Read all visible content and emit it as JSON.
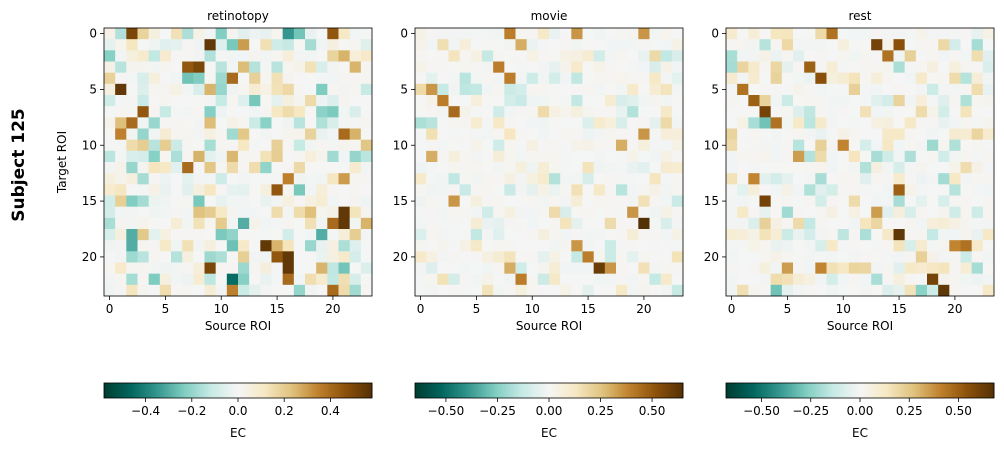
{
  "figure": {
    "suptitle": "Subject 125"
  },
  "chart_data": [
    {
      "type": "heatmap",
      "title": "retinotopy",
      "xlabel": "Source ROI",
      "ylabel": "Target ROI",
      "rows": 24,
      "cols": 24,
      "xticks": [
        0,
        5,
        10,
        15,
        20
      ],
      "yticks": [
        0,
        5,
        10,
        15,
        20
      ],
      "colormap": "BrBG_r",
      "vmin": -0.58,
      "vmax": 0.58,
      "colorbar": {
        "label": "EC",
        "ticks": [
          -0.4,
          -0.2,
          0.0,
          0.2,
          0.4
        ],
        "tick_labels": [
          "−0.4",
          "−0.2",
          "0.0",
          "0.2",
          "0.4"
        ]
      },
      "seed": 11,
      "density": 0.55,
      "amplitude": 0.26,
      "positive_bias": 0.55,
      "hotspots": [
        [
          0,
          2,
          0.5
        ],
        [
          0,
          16,
          -0.35
        ],
        [
          0,
          17,
          -0.25
        ],
        [
          0,
          20,
          0.45
        ],
        [
          1,
          9,
          0.55
        ],
        [
          1,
          12,
          0.3
        ],
        [
          4,
          11,
          0.4
        ],
        [
          3,
          8,
          0.5
        ],
        [
          3,
          7,
          0.45
        ],
        [
          5,
          1,
          0.55
        ],
        [
          7,
          3,
          0.45
        ],
        [
          8,
          2,
          0.4
        ],
        [
          9,
          1,
          0.35
        ],
        [
          9,
          21,
          0.4
        ],
        [
          12,
          7,
          0.4
        ],
        [
          13,
          16,
          0.35
        ],
        [
          13,
          21,
          0.3
        ],
        [
          14,
          15,
          0.45
        ],
        [
          16,
          21,
          0.55
        ],
        [
          17,
          21,
          0.55
        ],
        [
          17,
          20,
          0.4
        ],
        [
          17,
          12,
          -0.3
        ],
        [
          18,
          2,
          -0.3
        ],
        [
          18,
          19,
          -0.3
        ],
        [
          19,
          14,
          0.55
        ],
        [
          19,
          2,
          -0.3
        ],
        [
          20,
          15,
          0.45
        ],
        [
          20,
          16,
          0.55
        ],
        [
          21,
          9,
          0.5
        ],
        [
          21,
          16,
          0.55
        ],
        [
          21,
          21,
          -0.25
        ],
        [
          22,
          11,
          -0.45
        ],
        [
          22,
          16,
          0.4
        ],
        [
          23,
          20,
          0.4
        ],
        [
          23,
          11,
          0.35
        ]
      ]
    },
    {
      "type": "heatmap",
      "title": "movie",
      "xlabel": "Source ROI",
      "ylabel": "",
      "rows": 24,
      "cols": 24,
      "xticks": [
        0,
        5,
        10,
        15,
        20
      ],
      "yticks": [
        0,
        5,
        10,
        15,
        20
      ],
      "colormap": "BrBG_r",
      "vmin": -0.65,
      "vmax": 0.65,
      "colorbar": {
        "label": "EC",
        "ticks": [
          -0.5,
          -0.25,
          0.0,
          0.25,
          0.5
        ],
        "tick_labels": [
          "−0.50",
          "−0.25",
          "0.00",
          "0.25",
          "0.50"
        ]
      },
      "seed": 23,
      "density": 0.45,
      "amplitude": 0.18,
      "positive_bias": 0.6,
      "hotspots": [
        [
          0,
          8,
          0.4
        ],
        [
          0,
          14,
          0.35
        ],
        [
          0,
          20,
          0.35
        ],
        [
          1,
          9,
          0.3
        ],
        [
          3,
          7,
          0.4
        ],
        [
          4,
          8,
          0.4
        ],
        [
          5,
          1,
          0.35
        ],
        [
          6,
          2,
          0.4
        ],
        [
          7,
          3,
          0.45
        ],
        [
          9,
          20,
          0.35
        ],
        [
          10,
          18,
          0.3
        ],
        [
          11,
          1,
          0.3
        ],
        [
          15,
          3,
          0.35
        ],
        [
          16,
          19,
          0.35
        ],
        [
          17,
          20,
          0.65
        ],
        [
          19,
          14,
          0.35
        ],
        [
          20,
          15,
          0.4
        ],
        [
          21,
          16,
          0.6
        ],
        [
          21,
          17,
          0.35
        ],
        [
          21,
          8,
          0.3
        ],
        [
          22,
          9,
          0.4
        ]
      ]
    },
    {
      "type": "heatmap",
      "title": "rest",
      "xlabel": "Source ROI",
      "ylabel": "",
      "rows": 24,
      "cols": 24,
      "xticks": [
        0,
        5,
        10,
        15,
        20
      ],
      "yticks": [
        0,
        5,
        10,
        15,
        20
      ],
      "colormap": "BrBG_r",
      "vmin": -0.68,
      "vmax": 0.68,
      "colorbar": {
        "label": "EC",
        "ticks": [
          -0.5,
          -0.25,
          0.0,
          0.25,
          0.5
        ],
        "tick_labels": [
          "−0.50",
          "−0.25",
          "0.00",
          "0.25",
          "0.50"
        ]
      },
      "seed": 37,
      "density": 0.5,
      "amplitude": 0.22,
      "positive_bias": 0.6,
      "hotspots": [
        [
          0,
          9,
          0.45
        ],
        [
          1,
          13,
          0.6
        ],
        [
          1,
          15,
          0.55
        ],
        [
          2,
          14,
          0.45
        ],
        [
          3,
          7,
          0.5
        ],
        [
          4,
          8,
          0.55
        ],
        [
          5,
          1,
          0.45
        ],
        [
          6,
          2,
          0.5
        ],
        [
          7,
          3,
          0.6
        ],
        [
          8,
          3,
          -0.3
        ],
        [
          8,
          4,
          0.45
        ],
        [
          10,
          10,
          0.4
        ],
        [
          11,
          6,
          0.35
        ],
        [
          13,
          2,
          0.4
        ],
        [
          14,
          15,
          0.5
        ],
        [
          15,
          3,
          0.6
        ],
        [
          16,
          13,
          0.35
        ],
        [
          18,
          15,
          0.65
        ],
        [
          19,
          20,
          0.4
        ],
        [
          19,
          21,
          0.45
        ],
        [
          21,
          5,
          0.35
        ],
        [
          21,
          8,
          0.4
        ],
        [
          22,
          18,
          0.6
        ],
        [
          23,
          19,
          0.65
        ],
        [
          23,
          17,
          -0.25
        ],
        [
          23,
          4,
          -0.3
        ]
      ]
    }
  ]
}
